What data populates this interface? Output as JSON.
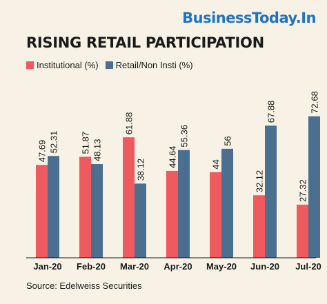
{
  "brand": "BusinessToday.In",
  "chart_data": {
    "type": "bar",
    "title": "RISING RETAIL PARTICIPATION",
    "categories": [
      "Jan-20",
      "Feb-20",
      "Mar-20",
      "Apr-20",
      "May-20",
      "Jun-20",
      "Jul-20"
    ],
    "series": [
      {
        "name": "Institutional (%)",
        "color": "#ef5a5e",
        "values": [
          47.69,
          51.87,
          61.88,
          44.64,
          44,
          32.12,
          27.32
        ],
        "labels": [
          "47.69",
          "51.87",
          "61.88",
          "44.64",
          "44",
          "32.12",
          "27.32"
        ]
      },
      {
        "name": "Retail/Non Insti (%)",
        "color": "#4a6f8f",
        "values": [
          52.31,
          48.13,
          38.12,
          55.36,
          56,
          67.88,
          72.68
        ],
        "labels": [
          "52.31",
          "48.13",
          "38.12",
          "55.36",
          "56",
          "67.88",
          "72.68"
        ]
      }
    ],
    "ylim": [
      0,
      100
    ],
    "grid": false,
    "legend_position": "top-left",
    "source": "Source: Edelweiss Securities"
  }
}
